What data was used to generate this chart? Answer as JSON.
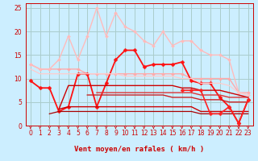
{
  "background_color": "#cceeff",
  "grid_color": "#aacccc",
  "xlabel": "Vent moyen/en rafales ( km/h )",
  "xlim": [
    -0.5,
    23.5
  ],
  "ylim": [
    0,
    26
  ],
  "yticks": [
    0,
    5,
    10,
    15,
    20,
    25
  ],
  "xticks": [
    0,
    1,
    2,
    3,
    4,
    5,
    6,
    7,
    8,
    9,
    10,
    11,
    12,
    13,
    14,
    15,
    16,
    17,
    18,
    19,
    20,
    21,
    22,
    23
  ],
  "series": [
    {
      "x": [
        0,
        1,
        2,
        3,
        4,
        5,
        6,
        7,
        8,
        9,
        10,
        11,
        12,
        13,
        14,
        15,
        16,
        17,
        18,
        19,
        20,
        21,
        22,
        23
      ],
      "y": [
        13,
        12,
        12,
        12,
        12,
        12,
        11,
        11,
        11,
        11,
        11,
        11,
        11,
        11,
        11,
        11,
        11,
        10,
        10,
        10,
        10,
        10,
        7,
        7
      ],
      "color": "#ffaaaa",
      "lw": 1.0,
      "marker": "D",
      "ms": 2.0
    },
    {
      "x": [
        0,
        1,
        2,
        3,
        4,
        5,
        6,
        7,
        8,
        9,
        10,
        11,
        12,
        13,
        14,
        15,
        16,
        17,
        18,
        19,
        20,
        21,
        22,
        23
      ],
      "y": [
        13,
        12,
        12,
        14,
        19,
        14,
        19,
        25,
        19,
        24,
        21,
        20,
        18,
        17,
        20,
        17,
        18,
        18,
        16,
        15,
        15,
        14,
        7,
        6.5
      ],
      "color": "#ffbbbb",
      "lw": 1.0,
      "marker": "D",
      "ms": 2.0
    },
    {
      "x": [
        0,
        1,
        2,
        3,
        4,
        5,
        6,
        7,
        8,
        9,
        10,
        11,
        12,
        13,
        14,
        15,
        16,
        17,
        18,
        19,
        20,
        21,
        22,
        23
      ],
      "y": [
        9.5,
        8,
        8,
        3,
        4,
        11,
        11,
        4,
        9,
        14,
        16,
        16,
        12.5,
        13,
        13,
        13,
        13.5,
        9.5,
        9,
        9,
        6,
        4,
        0.5,
        5.5
      ],
      "color": "#ff1111",
      "lw": 1.3,
      "marker": "D",
      "ms": 2.5
    },
    {
      "x": [
        0,
        1,
        2,
        3,
        4,
        5,
        6,
        7,
        8,
        9,
        10,
        11,
        12,
        13,
        14,
        15,
        16,
        17,
        18,
        19,
        20,
        21,
        22,
        23
      ],
      "y": [
        12,
        11,
        11,
        11,
        11,
        11,
        11,
        11,
        11,
        11,
        10.5,
        10.5,
        10.5,
        10.5,
        10.5,
        10.5,
        10,
        10,
        9,
        9,
        9,
        8.5,
        7,
        6.5
      ],
      "color": "#ffcccc",
      "lw": 0.9,
      "marker": null,
      "ms": 0
    },
    {
      "x": [
        0,
        1,
        2,
        3,
        4,
        5,
        6,
        7,
        8,
        9,
        10,
        11,
        12,
        13,
        14,
        15,
        16,
        17,
        18,
        19,
        20,
        21,
        22,
        23
      ],
      "y": [
        null,
        null,
        null,
        3.5,
        8.5,
        8.5,
        8.5,
        8.5,
        8.5,
        8.5,
        8.5,
        8.5,
        8.5,
        8.5,
        8.5,
        8.5,
        8,
        8,
        7.5,
        7.5,
        7.5,
        7,
        6.5,
        6
      ],
      "color": "#cc0000",
      "lw": 1.0,
      "marker": null,
      "ms": 0
    },
    {
      "x": [
        0,
        1,
        2,
        3,
        4,
        5,
        6,
        7,
        8,
        9,
        10,
        11,
        12,
        13,
        14,
        15,
        16,
        17,
        18,
        19,
        20,
        21,
        22,
        23
      ],
      "y": [
        null,
        null,
        null,
        3.5,
        4,
        4,
        4,
        4,
        4,
        4,
        4,
        4,
        4,
        4,
        4,
        4,
        4,
        4,
        3,
        3,
        3,
        3,
        3,
        3
      ],
      "color": "#cc0000",
      "lw": 1.0,
      "marker": null,
      "ms": 0
    },
    {
      "x": [
        0,
        1,
        2,
        3,
        4,
        5,
        6,
        7,
        8,
        9,
        10,
        11,
        12,
        13,
        14,
        15,
        16,
        17,
        18,
        19,
        20,
        21,
        22,
        23
      ],
      "y": [
        null,
        null,
        2.5,
        3,
        3,
        3,
        3,
        3,
        3,
        3,
        3,
        3,
        3,
        3,
        3,
        3,
        3,
        3,
        2.5,
        2.5,
        2.5,
        2.5,
        2.5,
        2.5
      ],
      "color": "#aa0000",
      "lw": 0.9,
      "marker": null,
      "ms": 0
    },
    {
      "x": [
        0,
        1,
        2,
        3,
        4,
        5,
        6,
        7,
        8,
        9,
        10,
        11,
        12,
        13,
        14,
        15,
        16,
        17,
        18,
        19,
        20,
        21,
        22,
        23
      ],
      "y": [
        null,
        null,
        null,
        null,
        null,
        null,
        6.5,
        6.5,
        6.5,
        6.5,
        6.5,
        6.5,
        6.5,
        6.5,
        6.5,
        6,
        6,
        6,
        5.5,
        5.5,
        5.5,
        5,
        5,
        5
      ],
      "color": "#cc2222",
      "lw": 1.0,
      "marker": null,
      "ms": 0
    },
    {
      "x": [
        0,
        1,
        2,
        3,
        4,
        5,
        6,
        7,
        8,
        9,
        10,
        11,
        12,
        13,
        14,
        15,
        16,
        17,
        18,
        19,
        20,
        21,
        22,
        23
      ],
      "y": [
        null,
        null,
        null,
        null,
        null,
        null,
        null,
        7,
        7,
        7,
        7,
        7,
        7,
        7,
        7,
        7,
        7,
        7,
        6.5,
        6.5,
        6.5,
        6,
        6,
        6
      ],
      "color": "#dd3333",
      "lw": 1.0,
      "marker": null,
      "ms": 0
    },
    {
      "x": [
        16,
        17,
        18,
        19,
        20,
        21,
        22,
        23
      ],
      "y": [
        7.5,
        7.5,
        7.5,
        2.5,
        2.5,
        4,
        0.5,
        5.5
      ],
      "color": "#ff2222",
      "lw": 1.2,
      "marker": "D",
      "ms": 2.5
    }
  ],
  "arrow_color": "#cc0000",
  "label_color": "#cc0000",
  "tick_fontsize": 5.5,
  "xlabel_fontsize": 6.5
}
